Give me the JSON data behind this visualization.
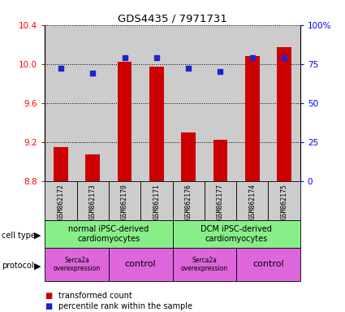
{
  "title": "GDS4435 / 7971731",
  "samples": [
    "GSM862172",
    "GSM862173",
    "GSM862170",
    "GSM862171",
    "GSM862176",
    "GSM862177",
    "GSM862174",
    "GSM862175"
  ],
  "bar_values": [
    9.15,
    9.07,
    10.02,
    9.97,
    9.3,
    9.22,
    10.08,
    10.17
  ],
  "dot_values": [
    72,
    69,
    79,
    79,
    72,
    70,
    79,
    79
  ],
  "ylim_left": [
    8.8,
    10.4
  ],
  "ylim_right": [
    0,
    100
  ],
  "yticks_left": [
    8.8,
    9.2,
    9.6,
    10.0,
    10.4
  ],
  "yticks_right": [
    0,
    25,
    50,
    75,
    100
  ],
  "ytick_labels_right": [
    "0",
    "25",
    "50",
    "75",
    "100%"
  ],
  "bar_color": "#cc0000",
  "dot_color": "#2222cc",
  "bar_bottom": 8.8,
  "cell_type_labels": [
    "normal iPSC-derived\ncardiomyocytes",
    "DCM iPSC-derived\ncardiomyocytes"
  ],
  "cell_type_color": "#88ee88",
  "protocol_labels": [
    "Serca2a\noverexpression",
    "control",
    "Serca2a\noverexpression",
    "control"
  ],
  "protocol_color": "#dd66dd",
  "sample_bg_color": "#cccccc",
  "bar_width": 0.45
}
